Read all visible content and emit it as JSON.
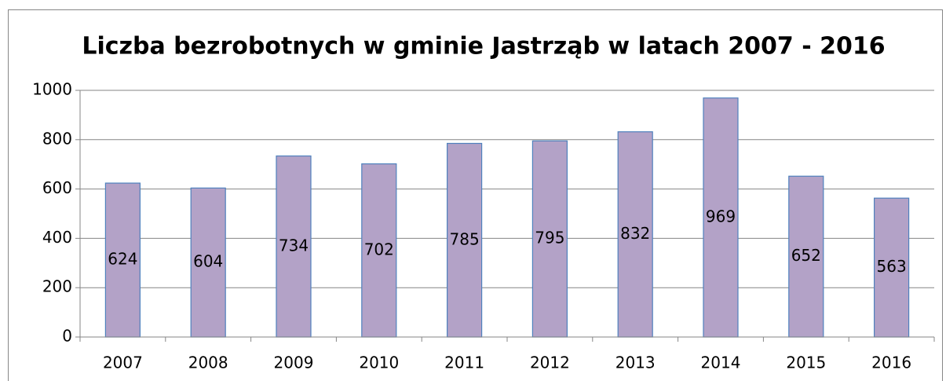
{
  "chart_data": {
    "type": "bar",
    "title": "Liczba bezrobotnych w gminie Jastrząb w latach 2007 - 2016",
    "categories": [
      "2007",
      "2008",
      "2009",
      "2010",
      "2011",
      "2012",
      "2013",
      "2014",
      "2015",
      "2016"
    ],
    "values": [
      624,
      604,
      734,
      702,
      785,
      795,
      832,
      969,
      652,
      563
    ],
    "color": "#b3a2c7",
    "edge_color": "#4f81bd",
    "ylim": [
      0,
      1000
    ],
    "yticks": [
      0,
      200,
      400,
      600,
      800,
      1000
    ],
    "grid": true,
    "data_labels": true
  }
}
